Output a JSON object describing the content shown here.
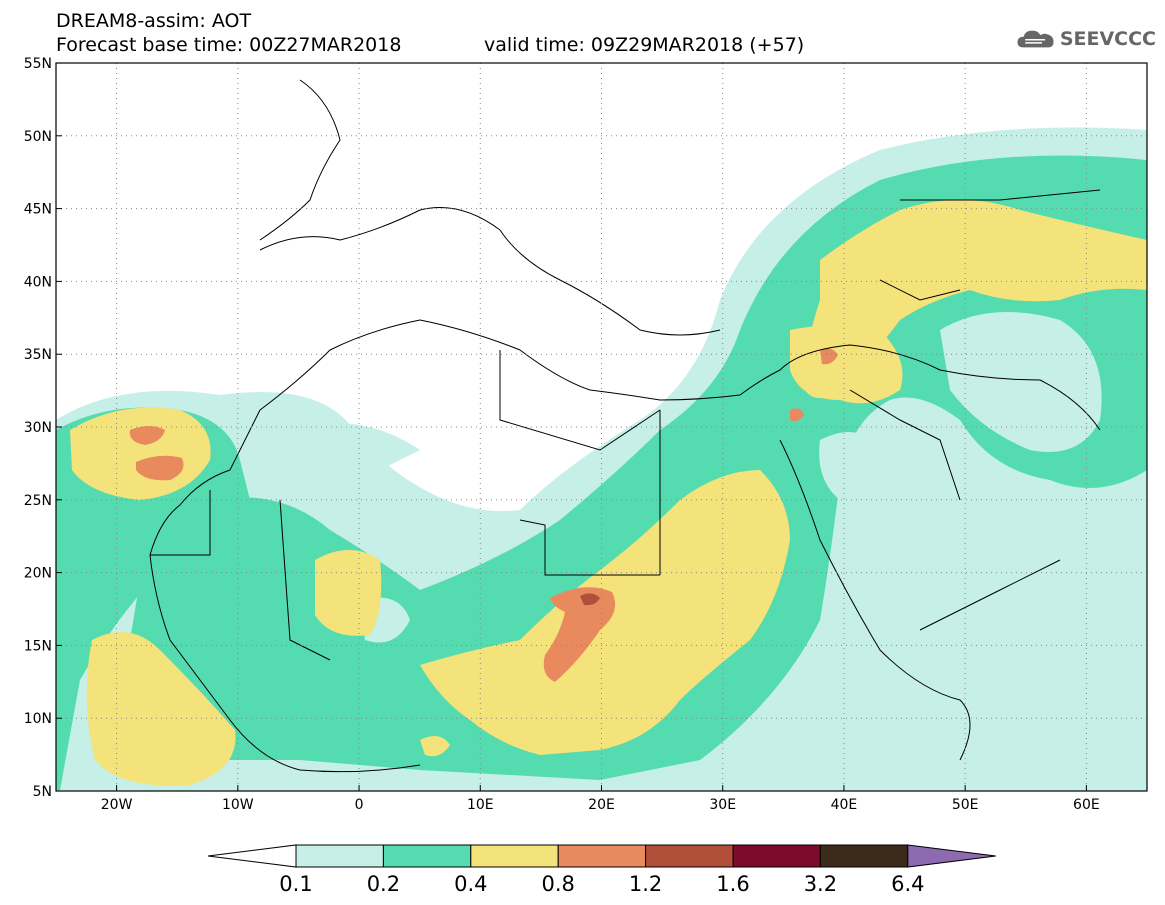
{
  "header": {
    "line1": "DREAM8-assim: AOT",
    "base_time": "Forecast base time: 00Z27MAR2018",
    "valid_time": "valid time: 09Z29MAR2018 (+57)"
  },
  "logo": {
    "text": "SEEVCCC",
    "icon": "cloud-logo-icon"
  },
  "map": {
    "lat_labels": [
      "55N",
      "50N",
      "45N",
      "40N",
      "35N",
      "30N",
      "25N",
      "20N",
      "15N",
      "10N",
      "5N"
    ],
    "lat_values": [
      55,
      50,
      45,
      40,
      35,
      30,
      25,
      20,
      15,
      10,
      5
    ],
    "lon_labels": [
      "20W",
      "10W",
      "0",
      "10E",
      "20E",
      "30E",
      "40E",
      "50E",
      "60E"
    ],
    "lon_values": [
      -20,
      -10,
      0,
      10,
      20,
      30,
      40,
      50,
      60
    ],
    "lon_range": [
      -25,
      65
    ],
    "lat_range": [
      5,
      55
    ],
    "grid": "dotted"
  },
  "colorbar": {
    "labels": [
      "0.1",
      "0.2",
      "0.4",
      "0.8",
      "1.2",
      "1.6",
      "3.2",
      "6.4"
    ],
    "colors": [
      "#c5efe7",
      "#55dbb0",
      "#f4e27a",
      "#e8895e",
      "#b24f3b",
      "#7a0b2a",
      "#3c2a1a"
    ],
    "under_color": "#ffffff",
    "over_color": "#8e6bb0"
  }
}
